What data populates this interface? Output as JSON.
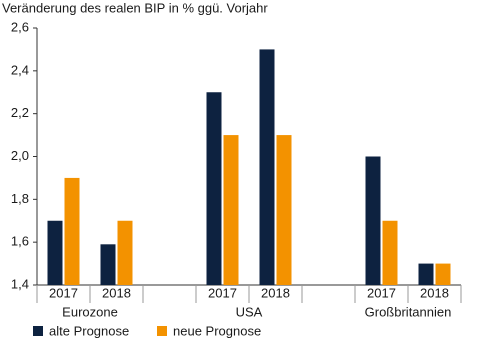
{
  "chart_data": {
    "type": "bar",
    "title": "Veränderung des realen BIP in % ggü. Vorjahr",
    "categories": [
      "2017",
      "2018",
      null,
      "2017",
      "2018",
      null,
      "2017",
      "2018"
    ],
    "groups": [
      "Eurozone",
      "USA",
      "Großbritannien"
    ],
    "series": [
      {
        "name": "alte Prognose",
        "color": "#0d2240",
        "values": [
          1.7,
          1.59,
          null,
          2.3,
          2.5,
          null,
          2.0,
          1.5
        ]
      },
      {
        "name": "neue Prognose",
        "color": "#f39200",
        "values": [
          1.9,
          1.7,
          null,
          2.1,
          2.1,
          null,
          1.7,
          1.5
        ]
      }
    ],
    "ylim": [
      1.4,
      2.6
    ],
    "yticks": [
      {
        "value": 1.4,
        "label": "1,4"
      },
      {
        "value": 1.6,
        "label": "1,6"
      },
      {
        "value": 1.8,
        "label": "1,8"
      },
      {
        "value": 2.0,
        "label": "2,0"
      },
      {
        "value": 2.2,
        "label": "2,2"
      },
      {
        "value": 2.4,
        "label": "2,4"
      },
      {
        "value": 2.6,
        "label": "2,6"
      }
    ],
    "grid": false
  }
}
